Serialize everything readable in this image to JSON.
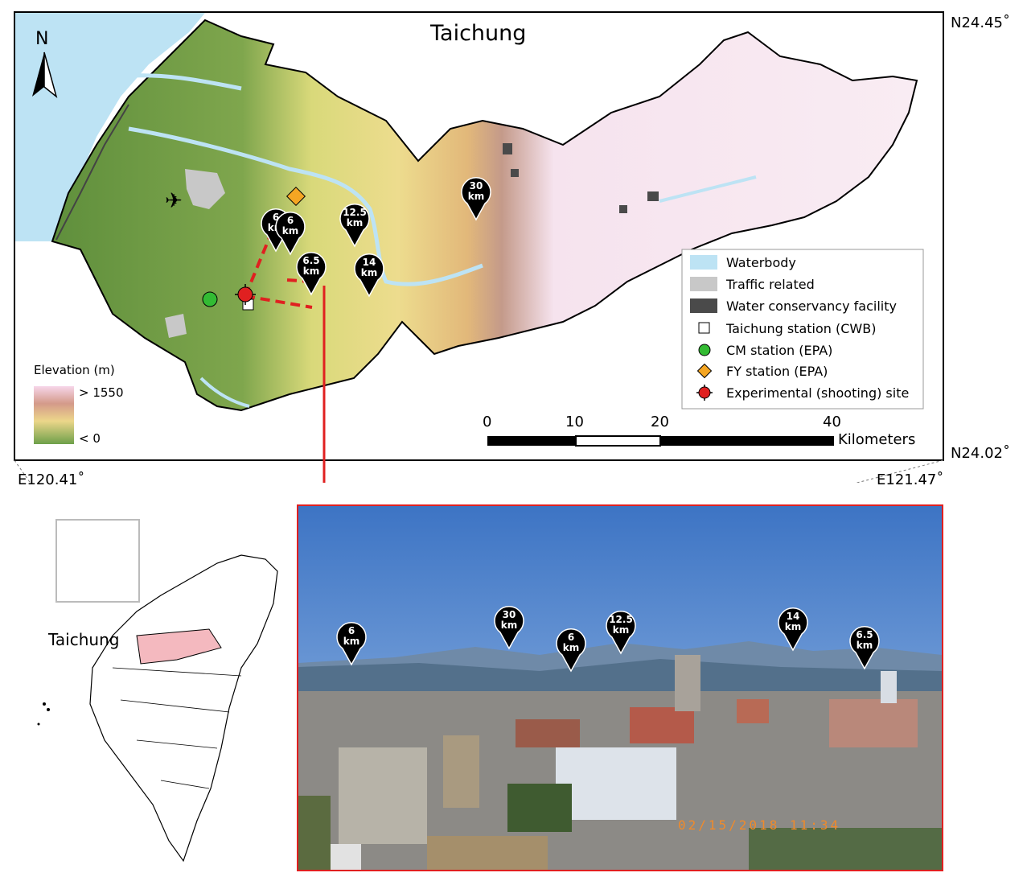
{
  "map": {
    "title": "Taichung",
    "north_label": "N",
    "coords": {
      "top_right": "N24.45˚",
      "bottom_right": "N24.02˚",
      "bottom_left": "E120.41˚",
      "bottom_far_right": "E121.47˚"
    },
    "elevation_legend": {
      "title": "Elevation (m)",
      "high": "> 1550",
      "low": "< 0"
    },
    "legend": [
      {
        "label": "Waterbody",
        "symbol": "waterbody",
        "color": "#bde3f4"
      },
      {
        "label": "Traffic related",
        "symbol": "traffic",
        "color": "#c8c8c8"
      },
      {
        "label": "Water conservancy facility",
        "symbol": "facility",
        "color": "#4a4a4a"
      },
      {
        "label": "Taichung station (CWB)",
        "symbol": "square",
        "color": "#ffffff"
      },
      {
        "label": "CM station (EPA)",
        "symbol": "circle",
        "color": "#33bb33"
      },
      {
        "label": "FY station (EPA)",
        "symbol": "diamond",
        "color": "#f5a623"
      },
      {
        "label": "Experimental (shooting) site",
        "symbol": "crosshair",
        "color": "#e02020"
      }
    ],
    "scale_bar": {
      "ticks": [
        "0",
        "10",
        "20",
        "40"
      ],
      "unit": "Kilometers"
    },
    "markers": [
      {
        "label": "6",
        "unit": "km"
      },
      {
        "label": "6",
        "unit": "km"
      },
      {
        "label": "12.5",
        "unit": "km"
      },
      {
        "label": "30",
        "unit": "km"
      },
      {
        "label": "6.5",
        "unit": "km"
      },
      {
        "label": "14",
        "unit": "km"
      }
    ]
  },
  "inset": {
    "label": "Taichung"
  },
  "photo": {
    "timestamp": "02/15/2018  11:34",
    "markers": [
      {
        "label": "6",
        "unit": "km"
      },
      {
        "label": "30",
        "unit": "km"
      },
      {
        "label": "6",
        "unit": "km"
      },
      {
        "label": "12.5",
        "unit": "km"
      },
      {
        "label": "14",
        "unit": "km"
      },
      {
        "label": "6.5",
        "unit": "km"
      }
    ]
  },
  "colors": {
    "lowland": "#6e9e45",
    "midland": "#e9d890",
    "highland": "#f7e6f0",
    "water": "#bde3f4",
    "accent": "#e02020",
    "sky": "#4f86cf"
  }
}
